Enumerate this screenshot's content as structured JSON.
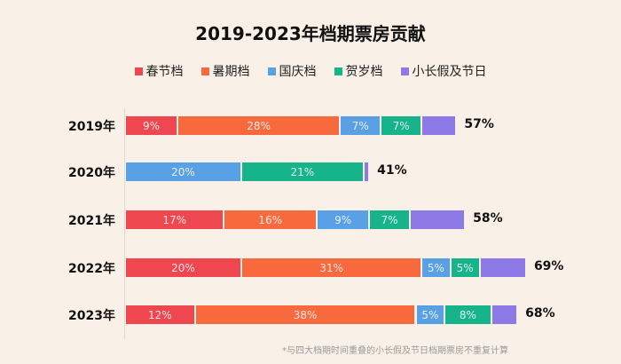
{
  "chart_data": {
    "type": "bar",
    "orientation": "horizontal",
    "stacked": true,
    "title": "2019-2023年档期票房贡献",
    "categories": [
      "2019年",
      "2020年",
      "2021年",
      "2022年",
      "2023年"
    ],
    "series": [
      {
        "name": "春节档",
        "color": "#ef4750",
        "values": [
          9,
          0,
          17,
          20,
          12
        ],
        "labels": [
          "9%",
          "",
          "17%",
          "20%",
          "12%"
        ]
      },
      {
        "name": "暑期档",
        "color": "#f8693d",
        "values": [
          28,
          0,
          16,
          31,
          38
        ],
        "labels": [
          "28%",
          "",
          "16%",
          "31%",
          "38%"
        ]
      },
      {
        "name": "国庆档",
        "color": "#5aa0e4",
        "values": [
          7,
          20,
          9,
          5,
          5
        ],
        "labels": [
          "7%",
          "20%",
          "9%",
          "5%",
          "5%"
        ]
      },
      {
        "name": "贺岁档",
        "color": "#17b38b",
        "values": [
          7,
          21,
          7,
          5,
          8
        ],
        "labels": [
          "7%",
          "21%",
          "7%",
          "5%",
          "8%"
        ]
      },
      {
        "name": "小长假及节日",
        "color": "#8e7ae6",
        "values": [
          6,
          1,
          9.5,
          8,
          4.5
        ],
        "labels": [
          "",
          "",
          "",
          "",
          ""
        ]
      }
    ],
    "totals": [
      "57%",
      "41%",
      "58%",
      "69%",
      "68%"
    ],
    "legend_position": "top",
    "grid": false,
    "note": "*与四大档期时间重叠的小长假及节日档期票房不重复计算"
  }
}
